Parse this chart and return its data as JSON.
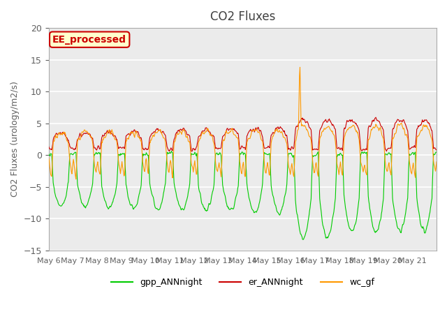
{
  "title": "CO2 Fluxes",
  "ylabel": "CO2 Fluxes (urology/m2/s)",
  "xlim_start": 0,
  "xlim_end": 16,
  "ylim": [
    -15,
    20
  ],
  "yticks": [
    -15,
    -10,
    -5,
    0,
    5,
    10,
    15,
    20
  ],
  "xtick_labels": [
    "May 6",
    "May 7",
    "May 8",
    "May 9",
    "May 10",
    "May 11",
    "May 12",
    "May 13",
    "May 14",
    "May 15",
    "May 16",
    "May 17",
    "May 18",
    "May 19",
    "May 20",
    "May 21",
    ""
  ],
  "gpp_color": "#00cc00",
  "er_color": "#cc0000",
  "wc_color": "#ff9900",
  "plot_bg": "#ebebeb",
  "annotation_text": "EE_processed",
  "annotation_bg": "#ffffcc",
  "annotation_border": "#cc0000",
  "legend_items": [
    "gpp_ANNnight",
    "er_ANNnight",
    "wc_gf"
  ],
  "legend_colors": [
    "#00cc00",
    "#cc0000",
    "#ff9900"
  ],
  "n_days": 16,
  "pts_per_day": 48,
  "title_color": "#404040",
  "axes_color": "#606060",
  "grid_color": "#ffffff"
}
